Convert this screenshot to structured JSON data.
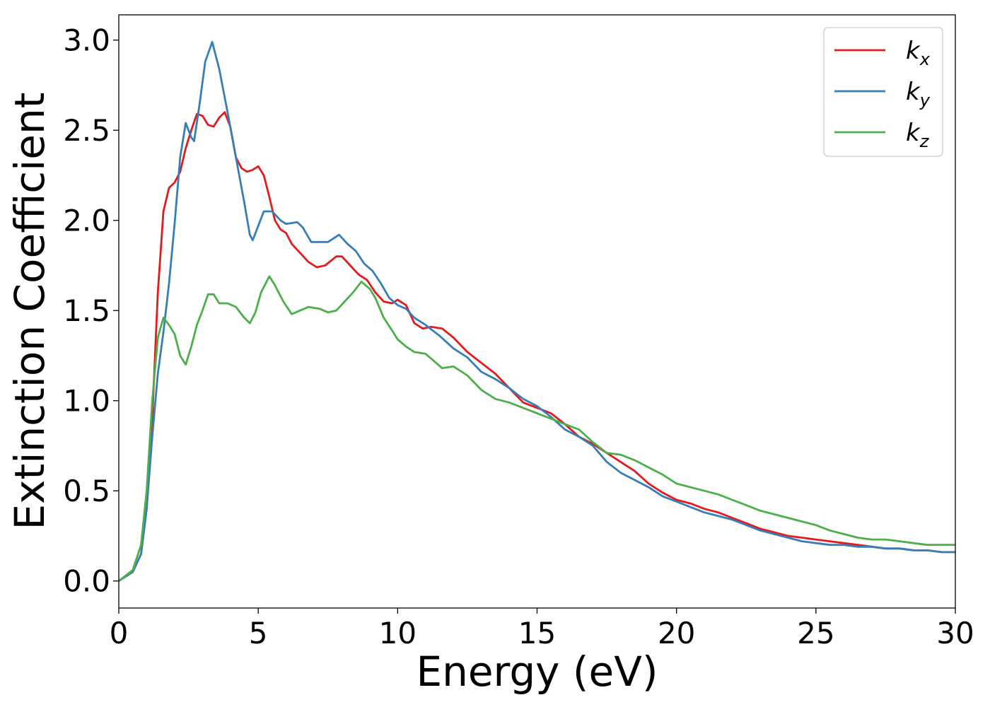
{
  "chart_data": {
    "type": "line",
    "xlabel": "Energy (eV)",
    "ylabel": "Extinction Coefficient",
    "xlim": [
      0,
      30
    ],
    "ylim": [
      -0.15,
      3.14
    ],
    "x_ticks": [
      "0",
      "5",
      "10",
      "15",
      "20",
      "25",
      "30"
    ],
    "y_ticks": [
      "0.0",
      "0.5",
      "1.0",
      "1.5",
      "2.0",
      "2.5",
      "3.0"
    ],
    "grid": false,
    "legend_position": "top-right",
    "series": [
      {
        "name": "k",
        "subscript": "x",
        "color": "#e41a1c",
        "points": [
          [
            0,
            0
          ],
          [
            0.5,
            0.05
          ],
          [
            0.8,
            0.15
          ],
          [
            1.0,
            0.4
          ],
          [
            1.2,
            0.9
          ],
          [
            1.4,
            1.6
          ],
          [
            1.6,
            2.05
          ],
          [
            1.8,
            2.18
          ],
          [
            2.0,
            2.21
          ],
          [
            2.2,
            2.27
          ],
          [
            2.4,
            2.4
          ],
          [
            2.6,
            2.5
          ],
          [
            2.8,
            2.59
          ],
          [
            3.0,
            2.58
          ],
          [
            3.2,
            2.53
          ],
          [
            3.4,
            2.52
          ],
          [
            3.6,
            2.57
          ],
          [
            3.8,
            2.6
          ],
          [
            4.0,
            2.52
          ],
          [
            4.2,
            2.35
          ],
          [
            4.4,
            2.29
          ],
          [
            4.6,
            2.27
          ],
          [
            4.8,
            2.28
          ],
          [
            5.0,
            2.3
          ],
          [
            5.2,
            2.25
          ],
          [
            5.4,
            2.13
          ],
          [
            5.6,
            2.0
          ],
          [
            5.8,
            1.95
          ],
          [
            6.0,
            1.93
          ],
          [
            6.2,
            1.87
          ],
          [
            6.5,
            1.82
          ],
          [
            6.8,
            1.77
          ],
          [
            7.1,
            1.74
          ],
          [
            7.4,
            1.75
          ],
          [
            7.8,
            1.8
          ],
          [
            8.0,
            1.8
          ],
          [
            8.3,
            1.75
          ],
          [
            8.6,
            1.7
          ],
          [
            8.9,
            1.67
          ],
          [
            9.2,
            1.6
          ],
          [
            9.5,
            1.55
          ],
          [
            9.8,
            1.54
          ],
          [
            10.0,
            1.56
          ],
          [
            10.3,
            1.53
          ],
          [
            10.6,
            1.43
          ],
          [
            10.9,
            1.4
          ],
          [
            11.2,
            1.41
          ],
          [
            11.6,
            1.4
          ],
          [
            12.0,
            1.35
          ],
          [
            12.5,
            1.27
          ],
          [
            13.0,
            1.21
          ],
          [
            13.5,
            1.15
          ],
          [
            14.0,
            1.07
          ],
          [
            14.5,
            0.99
          ],
          [
            15.0,
            0.96
          ],
          [
            15.5,
            0.93
          ],
          [
            16.0,
            0.87
          ],
          [
            16.5,
            0.8
          ],
          [
            17.0,
            0.76
          ],
          [
            17.5,
            0.71
          ],
          [
            18.0,
            0.66
          ],
          [
            18.5,
            0.61
          ],
          [
            19.0,
            0.54
          ],
          [
            19.5,
            0.49
          ],
          [
            20.0,
            0.45
          ],
          [
            20.5,
            0.43
          ],
          [
            21.0,
            0.4
          ],
          [
            21.5,
            0.38
          ],
          [
            22.0,
            0.35
          ],
          [
            22.5,
            0.32
          ],
          [
            23.0,
            0.29
          ],
          [
            23.5,
            0.27
          ],
          [
            24.0,
            0.25
          ],
          [
            24.5,
            0.24
          ],
          [
            25.0,
            0.23
          ],
          [
            25.5,
            0.22
          ],
          [
            26.0,
            0.21
          ],
          [
            26.5,
            0.2
          ],
          [
            27.0,
            0.19
          ],
          [
            27.5,
            0.18
          ],
          [
            28.0,
            0.18
          ],
          [
            28.5,
            0.17
          ],
          [
            29.0,
            0.17
          ],
          [
            29.5,
            0.16
          ],
          [
            30.0,
            0.16
          ]
        ]
      },
      {
        "name": "k",
        "subscript": "y",
        "color": "#377eb8",
        "points": [
          [
            0,
            0
          ],
          [
            0.5,
            0.05
          ],
          [
            0.8,
            0.15
          ],
          [
            1.0,
            0.4
          ],
          [
            1.2,
            0.8
          ],
          [
            1.4,
            1.15
          ],
          [
            1.6,
            1.38
          ],
          [
            1.8,
            1.65
          ],
          [
            2.0,
            1.98
          ],
          [
            2.2,
            2.35
          ],
          [
            2.4,
            2.54
          ],
          [
            2.6,
            2.46
          ],
          [
            2.7,
            2.44
          ],
          [
            2.9,
            2.65
          ],
          [
            3.1,
            2.88
          ],
          [
            3.35,
            2.99
          ],
          [
            3.6,
            2.84
          ],
          [
            3.9,
            2.6
          ],
          [
            4.2,
            2.35
          ],
          [
            4.5,
            2.1
          ],
          [
            4.7,
            1.92
          ],
          [
            4.8,
            1.89
          ],
          [
            5.0,
            1.97
          ],
          [
            5.2,
            2.05
          ],
          [
            5.5,
            2.05
          ],
          [
            5.8,
            2.0
          ],
          [
            6.0,
            1.98
          ],
          [
            6.4,
            1.99
          ],
          [
            6.6,
            1.96
          ],
          [
            6.9,
            1.88
          ],
          [
            7.2,
            1.88
          ],
          [
            7.5,
            1.88
          ],
          [
            7.9,
            1.92
          ],
          [
            8.2,
            1.87
          ],
          [
            8.5,
            1.83
          ],
          [
            8.8,
            1.76
          ],
          [
            9.1,
            1.72
          ],
          [
            9.4,
            1.65
          ],
          [
            9.7,
            1.57
          ],
          [
            10.0,
            1.53
          ],
          [
            10.3,
            1.51
          ],
          [
            10.6,
            1.46
          ],
          [
            11.0,
            1.42
          ],
          [
            11.5,
            1.36
          ],
          [
            12.0,
            1.29
          ],
          [
            12.5,
            1.24
          ],
          [
            13.0,
            1.16
          ],
          [
            13.5,
            1.12
          ],
          [
            14.0,
            1.07
          ],
          [
            14.5,
            1.01
          ],
          [
            15.0,
            0.97
          ],
          [
            15.5,
            0.91
          ],
          [
            16.0,
            0.84
          ],
          [
            16.5,
            0.8
          ],
          [
            17.0,
            0.75
          ],
          [
            17.5,
            0.66
          ],
          [
            18.0,
            0.6
          ],
          [
            18.5,
            0.56
          ],
          [
            19.0,
            0.52
          ],
          [
            19.5,
            0.47
          ],
          [
            20.0,
            0.44
          ],
          [
            20.5,
            0.41
          ],
          [
            21.0,
            0.38
          ],
          [
            21.5,
            0.36
          ],
          [
            22.0,
            0.34
          ],
          [
            22.5,
            0.31
          ],
          [
            23.0,
            0.28
          ],
          [
            23.5,
            0.26
          ],
          [
            24.0,
            0.24
          ],
          [
            24.5,
            0.22
          ],
          [
            25.0,
            0.21
          ],
          [
            25.5,
            0.2
          ],
          [
            26.0,
            0.2
          ],
          [
            26.5,
            0.19
          ],
          [
            27.0,
            0.19
          ],
          [
            27.5,
            0.18
          ],
          [
            28.0,
            0.18
          ],
          [
            28.5,
            0.17
          ],
          [
            29.0,
            0.17
          ],
          [
            29.5,
            0.16
          ],
          [
            30.0,
            0.16
          ]
        ]
      },
      {
        "name": "k",
        "subscript": "z",
        "color": "#4daf4a",
        "points": [
          [
            0,
            0
          ],
          [
            0.5,
            0.06
          ],
          [
            0.8,
            0.2
          ],
          [
            1.0,
            0.5
          ],
          [
            1.2,
            1.0
          ],
          [
            1.4,
            1.35
          ],
          [
            1.6,
            1.46
          ],
          [
            1.8,
            1.42
          ],
          [
            2.0,
            1.37
          ],
          [
            2.2,
            1.25
          ],
          [
            2.4,
            1.2
          ],
          [
            2.6,
            1.3
          ],
          [
            2.8,
            1.42
          ],
          [
            3.0,
            1.5
          ],
          [
            3.2,
            1.59
          ],
          [
            3.4,
            1.59
          ],
          [
            3.6,
            1.54
          ],
          [
            3.9,
            1.54
          ],
          [
            4.2,
            1.52
          ],
          [
            4.5,
            1.46
          ],
          [
            4.7,
            1.43
          ],
          [
            4.9,
            1.49
          ],
          [
            5.1,
            1.6
          ],
          [
            5.4,
            1.69
          ],
          [
            5.6,
            1.64
          ],
          [
            5.9,
            1.55
          ],
          [
            6.2,
            1.48
          ],
          [
            6.5,
            1.5
          ],
          [
            6.8,
            1.52
          ],
          [
            7.2,
            1.51
          ],
          [
            7.5,
            1.49
          ],
          [
            7.8,
            1.5
          ],
          [
            8.1,
            1.55
          ],
          [
            8.4,
            1.6
          ],
          [
            8.7,
            1.66
          ],
          [
            9.0,
            1.62
          ],
          [
            9.2,
            1.57
          ],
          [
            9.5,
            1.46
          ],
          [
            9.8,
            1.39
          ],
          [
            10.0,
            1.34
          ],
          [
            10.3,
            1.3
          ],
          [
            10.6,
            1.27
          ],
          [
            11.0,
            1.26
          ],
          [
            11.3,
            1.22
          ],
          [
            11.6,
            1.18
          ],
          [
            12.0,
            1.19
          ],
          [
            12.5,
            1.14
          ],
          [
            13.0,
            1.06
          ],
          [
            13.5,
            1.01
          ],
          [
            14.0,
            0.99
          ],
          [
            14.5,
            0.96
          ],
          [
            15.0,
            0.93
          ],
          [
            15.5,
            0.9
          ],
          [
            16.0,
            0.87
          ],
          [
            16.5,
            0.84
          ],
          [
            17.0,
            0.77
          ],
          [
            17.5,
            0.71
          ],
          [
            18.0,
            0.7
          ],
          [
            18.5,
            0.67
          ],
          [
            19.0,
            0.63
          ],
          [
            19.5,
            0.59
          ],
          [
            20.0,
            0.54
          ],
          [
            20.5,
            0.52
          ],
          [
            21.0,
            0.5
          ],
          [
            21.5,
            0.48
          ],
          [
            22.0,
            0.45
          ],
          [
            22.5,
            0.42
          ],
          [
            23.0,
            0.39
          ],
          [
            23.5,
            0.37
          ],
          [
            24.0,
            0.35
          ],
          [
            24.5,
            0.33
          ],
          [
            25.0,
            0.31
          ],
          [
            25.5,
            0.28
          ],
          [
            26.0,
            0.26
          ],
          [
            26.5,
            0.24
          ],
          [
            27.0,
            0.23
          ],
          [
            27.5,
            0.23
          ],
          [
            28.0,
            0.22
          ],
          [
            28.5,
            0.21
          ],
          [
            29.0,
            0.2
          ],
          [
            29.5,
            0.2
          ],
          [
            30.0,
            0.2
          ]
        ]
      }
    ]
  }
}
